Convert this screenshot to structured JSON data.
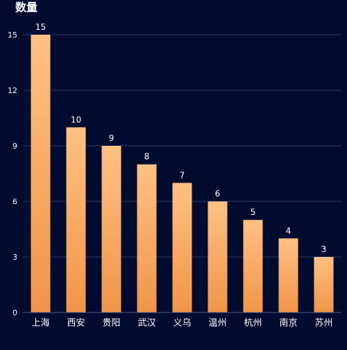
{
  "chart_data": {
    "type": "bar",
    "title": "数量",
    "categories": [
      "上海",
      "西安",
      "贵阳",
      "武汉",
      "义乌",
      "温州",
      "杭州",
      "南京",
      "苏州"
    ],
    "values": [
      15,
      10,
      9,
      8,
      7,
      6,
      5,
      4,
      3
    ],
    "yticks": [
      "0",
      "3",
      "6",
      "9",
      "12",
      "15"
    ],
    "ylim": [
      0,
      15
    ],
    "grid": true,
    "show_data_labels": true,
    "colors": {
      "background": "#000b2e",
      "bar_top": "#ffc184",
      "bar_bottom": "#f0954a",
      "grid": "#223a6e",
      "axis": "#4a5e8f",
      "text": "#ffffff"
    }
  }
}
